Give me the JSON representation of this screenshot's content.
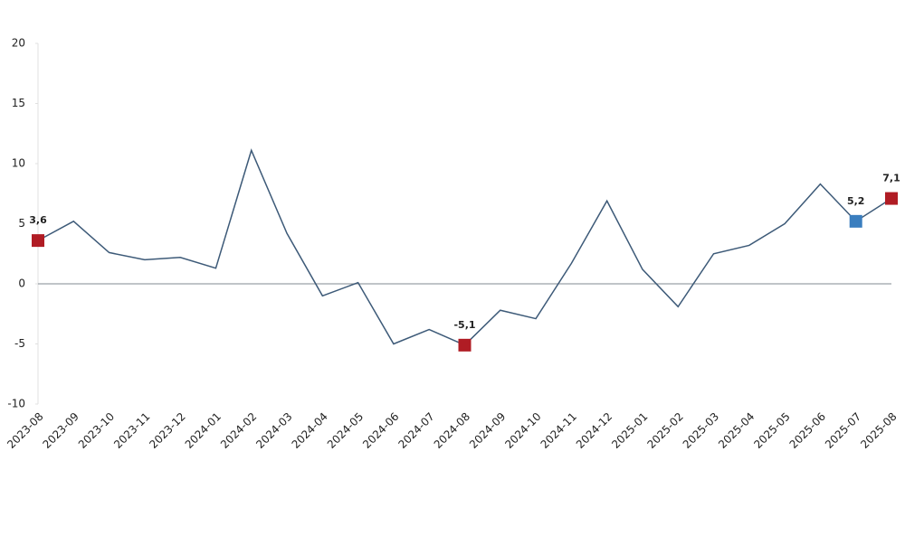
{
  "chart_data": {
    "type": "line",
    "categories": [
      "2023-08",
      "2023-09",
      "2023-10",
      "2023-11",
      "2023-12",
      "2024-01",
      "2024-02",
      "2024-03",
      "2024-04",
      "2024-05",
      "2024-06",
      "2024-07",
      "2024-08",
      "2024-09",
      "2024-10",
      "2024-11",
      "2024-12",
      "2025-01",
      "2025-02",
      "2025-03",
      "2025-04",
      "2025-05",
      "2025-06",
      "2025-07",
      "2025-08"
    ],
    "series": [
      {
        "color": "#3d5a78",
        "values": [
          3.6,
          5.2,
          2.6,
          2.0,
          2.2,
          1.3,
          11.1,
          4.2,
          -1.0,
          0.1,
          -5.0,
          -3.8,
          -5.1,
          -2.2,
          -2.9,
          1.7,
          6.9,
          1.2,
          -1.9,
          2.5,
          3.2,
          5.0,
          8.3,
          5.2,
          7.1
        ],
        "value_labels": [
          "3,6",
          null,
          null,
          null,
          null,
          null,
          null,
          null,
          null,
          null,
          null,
          null,
          "-5,1",
          null,
          null,
          null,
          null,
          null,
          null,
          null,
          null,
          null,
          null,
          "5,2",
          "7,1"
        ],
        "marker_colors": [
          "#b01c24",
          null,
          null,
          null,
          null,
          null,
          null,
          null,
          null,
          null,
          null,
          null,
          "#b01c24",
          null,
          null,
          null,
          null,
          null,
          null,
          null,
          null,
          null,
          null,
          "#3a7ebf",
          "#b01c24"
        ]
      }
    ],
    "ylim": [
      -10,
      20
    ],
    "yticks": [
      -10,
      -5,
      0,
      5,
      10,
      15,
      20
    ],
    "zero_line": true
  }
}
